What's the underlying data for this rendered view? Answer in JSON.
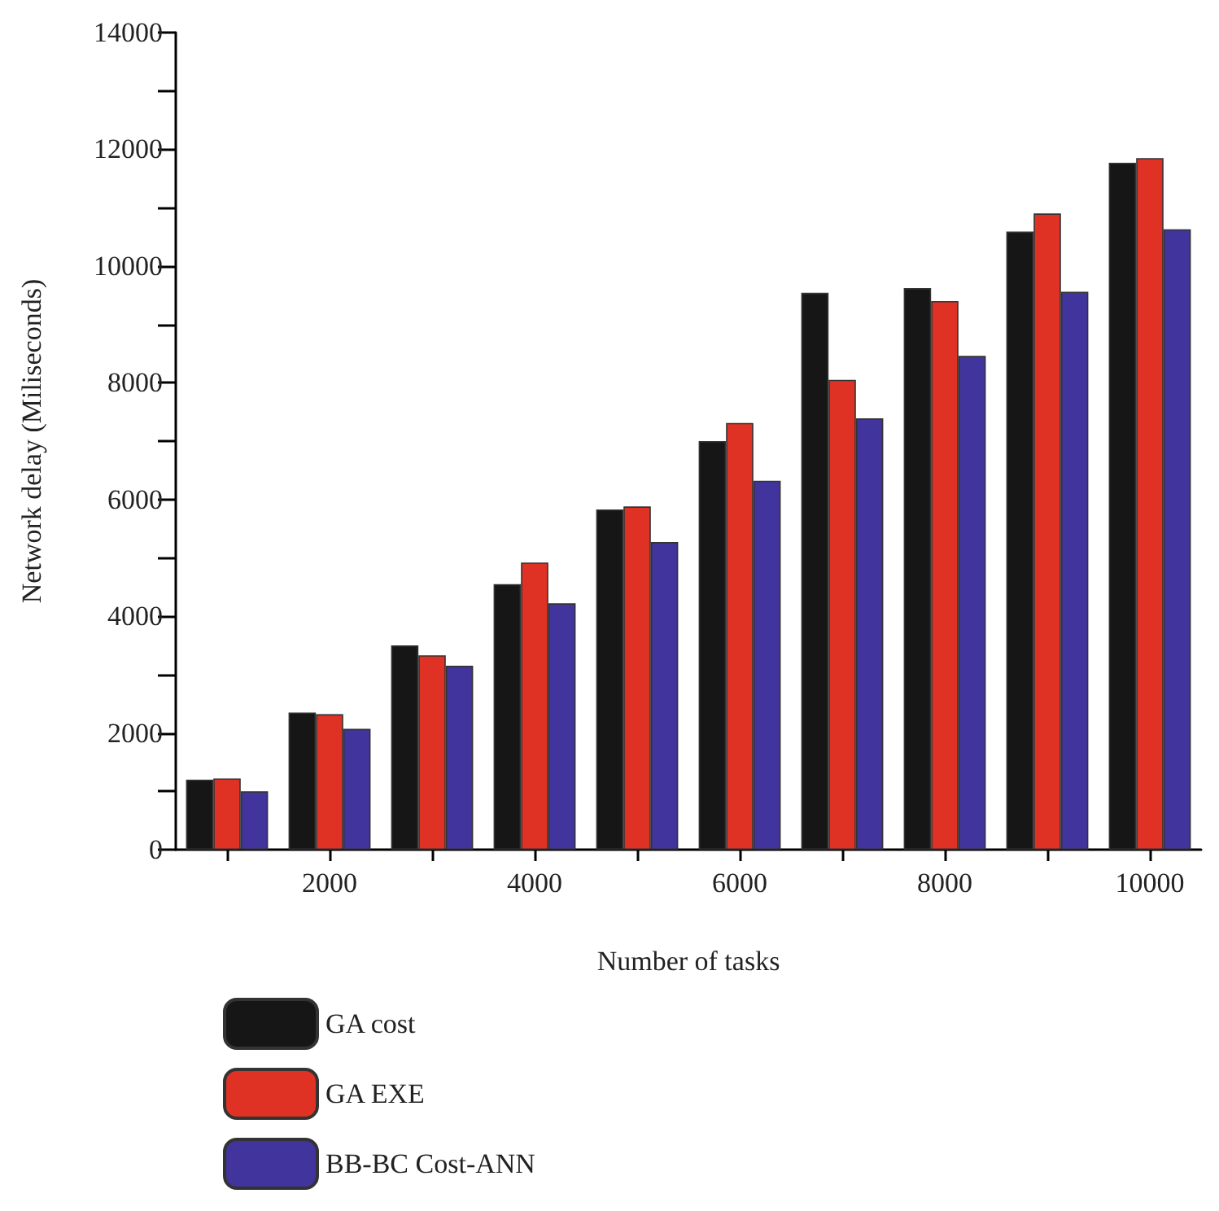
{
  "chart_data": {
    "type": "bar",
    "xlabel": "Number of tasks",
    "ylabel": "Network delay (Miliseconds)",
    "categories": [
      null,
      "2000",
      null,
      "4000",
      null,
      "6000",
      null,
      "8000",
      null,
      "10000"
    ],
    "series": [
      {
        "name": "GA cost",
        "color": "#161616",
        "values": [
          1200,
          2350,
          3500,
          4550,
          5830,
          7000,
          9540,
          9620,
          10590,
          11770
        ]
      },
      {
        "name": "GA EXE",
        "color": "#e03224",
        "values": [
          1220,
          2320,
          3330,
          4920,
          5880,
          7310,
          8050,
          9400,
          10900,
          11850
        ]
      },
      {
        "name": "BB-BC Cost-ANN",
        "color": "#41349c",
        "values": [
          1000,
          2070,
          3150,
          4220,
          5270,
          6320,
          7390,
          8460,
          9560,
          10630
        ]
      }
    ],
    "ylim": [
      0,
      14000
    ],
    "yticks": [
      0,
      {
        "value": 1000,
        "label": null
      },
      2000,
      {
        "value": 3000,
        "label": null
      },
      4000,
      {
        "value": 5000,
        "label": null
      },
      6000,
      {
        "value": 7000,
        "label": null
      },
      8000,
      {
        "value": 9000,
        "label": null
      },
      10000,
      {
        "value": 11000,
        "label": null
      },
      12000,
      {
        "value": 13000,
        "label": null
      },
      14000
    ],
    "grid": false,
    "legend": "bottom left"
  }
}
